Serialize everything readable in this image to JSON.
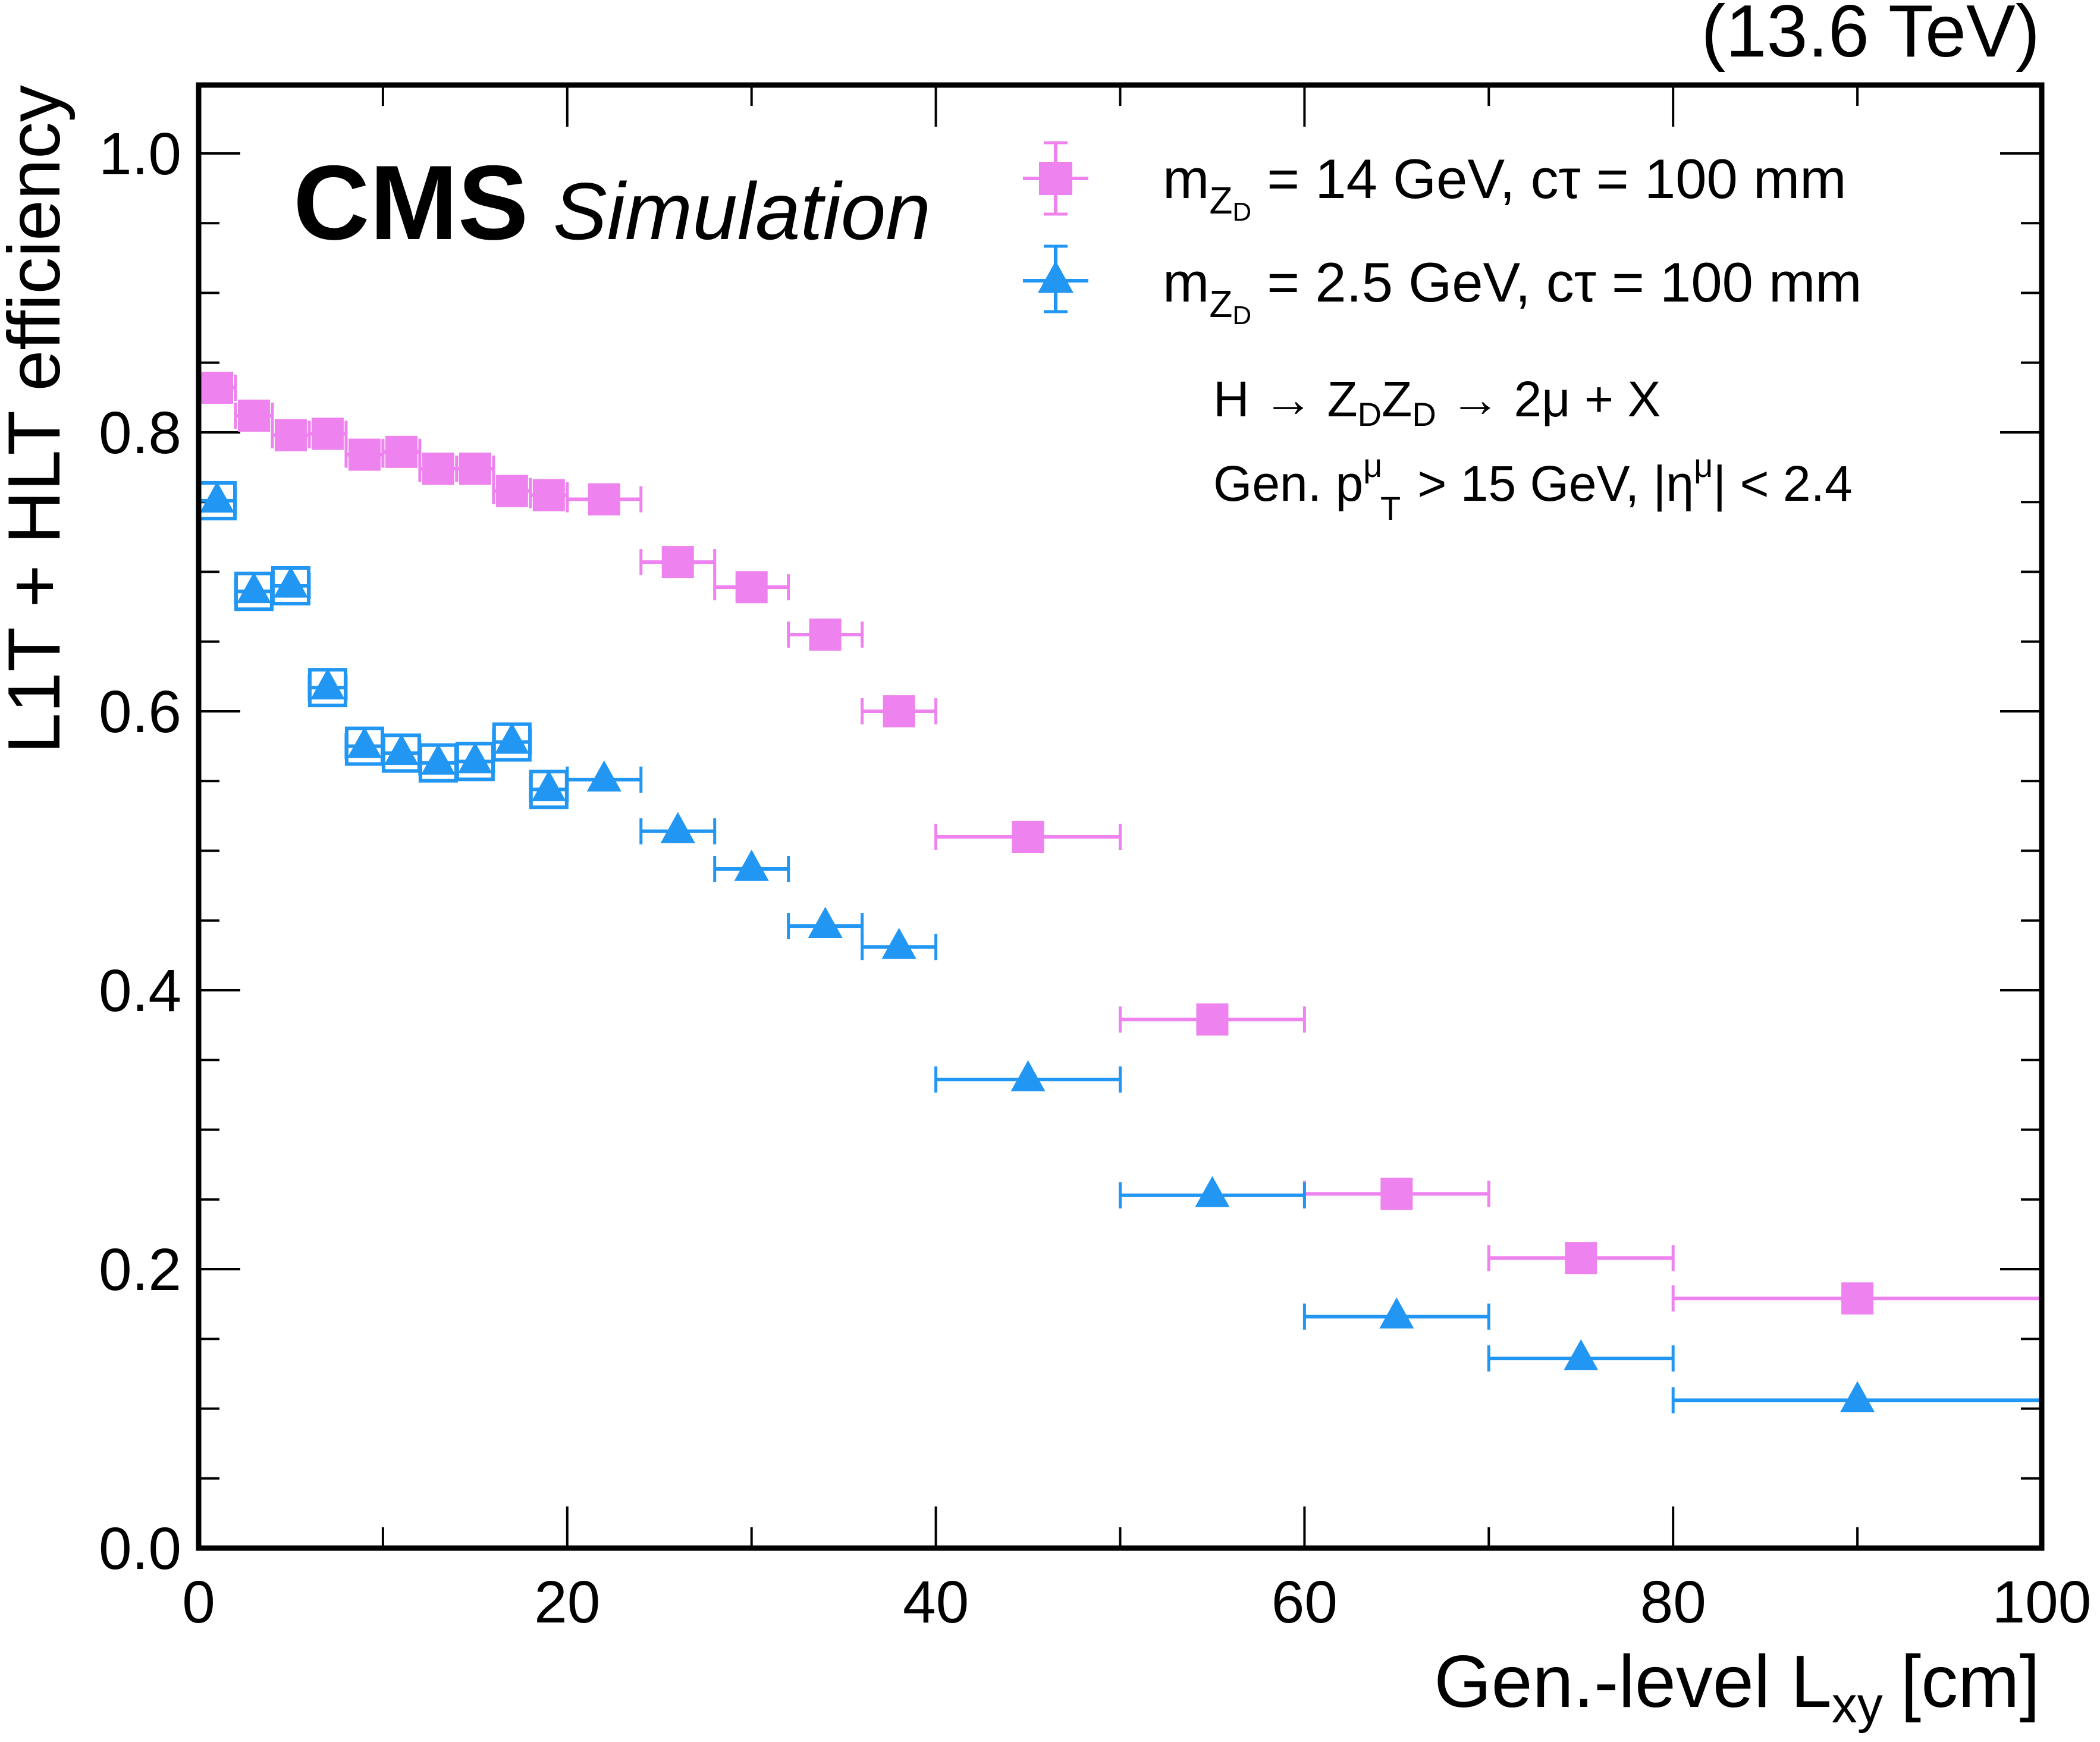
{
  "chart_data": {
    "type": "scatter",
    "energy_label": "(13.6 TeV)",
    "experiment": "CMS",
    "status": "Simulation",
    "xlabel": "Gen.-level L",
    "xlabel_sub": "xy",
    "xlabel_unit": "[cm]",
    "ylabel": "L1T + HLT efficiency",
    "xlim": [
      0,
      100
    ],
    "ylim": [
      0.0,
      1.05
    ],
    "x_ticks": [
      "0",
      "20",
      "40",
      "60",
      "80",
      "100"
    ],
    "y_ticks": [
      "0.0",
      "0.2",
      "0.4",
      "0.6",
      "0.8",
      "1.0"
    ],
    "legend_position": "top-right",
    "annotations": {
      "process": {
        "pre": "H → Z",
        "d1": "D",
        "mid": "Z",
        "d2": "D",
        "post": " → 2μ + X"
      },
      "cuts": {
        "pre": "Gen. p",
        "sup": "μ",
        "sub": "T",
        "mid": " > 15 GeV, |η",
        "sup2": "μ",
        "post": "| < 2.4"
      }
    },
    "colors": {
      "pink": "#ee82ee",
      "blue": "#2196f3",
      "axis": "#000000"
    },
    "series": [
      {
        "name": "mZD14",
        "marker": "square",
        "color": "#ee82ee",
        "legend": {
          "m": "m",
          "sub": "Z",
          "subsub": "D",
          "rest": " = 14 GeV, cτ = 100 mm"
        },
        "points": [
          {
            "x": 1,
            "xlo": 0,
            "xhi": 2,
            "y": 0.832
          },
          {
            "x": 3,
            "xlo": 2,
            "xhi": 4,
            "y": 0.812
          },
          {
            "x": 5,
            "xlo": 4,
            "xhi": 6,
            "y": 0.798
          },
          {
            "x": 7,
            "xlo": 6,
            "xhi": 8,
            "y": 0.799
          },
          {
            "x": 9,
            "xlo": 8,
            "xhi": 10,
            "y": 0.784
          },
          {
            "x": 11,
            "xlo": 10,
            "xhi": 12,
            "y": 0.786
          },
          {
            "x": 13,
            "xlo": 12,
            "xhi": 14,
            "y": 0.774
          },
          {
            "x": 15,
            "xlo": 14,
            "xhi": 16,
            "y": 0.774
          },
          {
            "x": 17,
            "xlo": 16,
            "xhi": 18,
            "y": 0.758
          },
          {
            "x": 19,
            "xlo": 18,
            "xhi": 20,
            "y": 0.755
          },
          {
            "x": 22,
            "xlo": 20,
            "xhi": 24,
            "y": 0.752
          },
          {
            "x": 26,
            "xlo": 24,
            "xhi": 28,
            "y": 0.707
          },
          {
            "x": 30,
            "xlo": 28,
            "xhi": 32,
            "y": 0.689
          },
          {
            "x": 34,
            "xlo": 32,
            "xhi": 36,
            "y": 0.655
          },
          {
            "x": 38,
            "xlo": 36,
            "xhi": 40,
            "y": 0.6
          },
          {
            "x": 45,
            "xlo": 40,
            "xhi": 50,
            "y": 0.51
          },
          {
            "x": 55,
            "xlo": 50,
            "xhi": 60,
            "y": 0.379
          },
          {
            "x": 65,
            "xlo": 60,
            "xhi": 70,
            "y": 0.254
          },
          {
            "x": 75,
            "xlo": 70,
            "xhi": 80,
            "y": 0.208
          },
          {
            "x": 90,
            "xlo": 80,
            "xhi": 100,
            "y": 0.179
          }
        ]
      },
      {
        "name": "mZD25",
        "marker": "triangle",
        "color": "#2196f3",
        "legend": {
          "m": "m",
          "sub": "Z",
          "subsub": "D",
          "rest": " = 2.5 GeV, cτ = 100 mm"
        },
        "points": [
          {
            "x": 1,
            "xlo": 0,
            "xhi": 2,
            "y": 0.751,
            "box": true
          },
          {
            "x": 3,
            "xlo": 2,
            "xhi": 4,
            "y": 0.686,
            "box": true
          },
          {
            "x": 5,
            "xlo": 4,
            "xhi": 6,
            "y": 0.69,
            "box": true
          },
          {
            "x": 7,
            "xlo": 6,
            "xhi": 8,
            "y": 0.617,
            "box": true
          },
          {
            "x": 9,
            "xlo": 8,
            "xhi": 10,
            "y": 0.575,
            "box": true
          },
          {
            "x": 11,
            "xlo": 10,
            "xhi": 12,
            "y": 0.57,
            "box": true
          },
          {
            "x": 13,
            "xlo": 12,
            "xhi": 14,
            "y": 0.563,
            "box": true
          },
          {
            "x": 15,
            "xlo": 14,
            "xhi": 16,
            "y": 0.564,
            "box": true
          },
          {
            "x": 17,
            "xlo": 16,
            "xhi": 18,
            "y": 0.578,
            "box": true
          },
          {
            "x": 19,
            "xlo": 18,
            "xhi": 20,
            "y": 0.544,
            "box": true
          },
          {
            "x": 22,
            "xlo": 20,
            "xhi": 24,
            "y": 0.551
          },
          {
            "x": 26,
            "xlo": 24,
            "xhi": 28,
            "y": 0.514
          },
          {
            "x": 30,
            "xlo": 28,
            "xhi": 32,
            "y": 0.487
          },
          {
            "x": 34,
            "xlo": 32,
            "xhi": 36,
            "y": 0.446
          },
          {
            "x": 38,
            "xlo": 36,
            "xhi": 40,
            "y": 0.431
          },
          {
            "x": 45,
            "xlo": 40,
            "xhi": 50,
            "y": 0.336
          },
          {
            "x": 55,
            "xlo": 50,
            "xhi": 60,
            "y": 0.253
          },
          {
            "x": 65,
            "xlo": 60,
            "xhi": 70,
            "y": 0.166
          },
          {
            "x": 75,
            "xlo": 70,
            "xhi": 80,
            "y": 0.136
          },
          {
            "x": 90,
            "xlo": 80,
            "xhi": 100,
            "y": 0.106
          }
        ]
      }
    ]
  }
}
